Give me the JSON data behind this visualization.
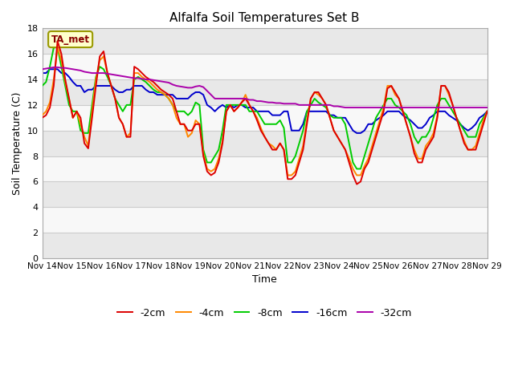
{
  "title": "Alfalfa Soil Temperatures Set B",
  "xlabel": "Time",
  "ylabel": "Soil Temperature (C)",
  "ylim": [
    0,
    18
  ],
  "yticks": [
    0,
    2,
    4,
    6,
    8,
    10,
    12,
    14,
    16,
    18
  ],
  "x_labels": [
    "Nov 14",
    "Nov 15",
    "Nov 16",
    "Nov 17",
    "Nov 18",
    "Nov 19",
    "Nov 20",
    "Nov 21",
    "Nov 22",
    "Nov 23",
    "Nov 24",
    "Nov 25",
    "Nov 26",
    "Nov 27",
    "Nov 28",
    "Nov 29"
  ],
  "annotation": "TA_met",
  "colors": {
    "-2cm": "#dd0000",
    "-4cm": "#ff8800",
    "-8cm": "#00cc00",
    "-16cm": "#0000cc",
    "-32cm": "#aa00aa"
  },
  "line_width": 1.4,
  "legend_labels": [
    "-2cm",
    "-4cm",
    "-8cm",
    "-16cm",
    "-32cm"
  ],
  "band_light": "#f0f0f0",
  "band_dark": "#e0e0e0",
  "grid_color": "#ffffff",
  "t2cm": [
    11.0,
    11.2,
    11.8,
    13.5,
    17.0,
    16.0,
    14.0,
    12.5,
    11.0,
    11.5,
    11.0,
    9.0,
    8.6,
    11.0,
    13.5,
    15.8,
    16.2,
    14.5,
    13.5,
    12.5,
    11.0,
    10.5,
    9.5,
    9.5,
    15.0,
    14.8,
    14.5,
    14.2,
    14.0,
    13.8,
    13.5,
    13.2,
    13.0,
    12.8,
    12.5,
    11.5,
    10.5,
    10.5,
    10.0,
    10.0,
    10.5,
    10.5,
    8.0,
    6.8,
    6.5,
    6.7,
    7.5,
    9.0,
    11.5,
    12.0,
    11.5,
    11.8,
    12.2,
    12.5,
    12.0,
    11.5,
    10.8,
    10.0,
    9.5,
    9.0,
    8.5,
    8.5,
    9.0,
    8.5,
    6.2,
    6.2,
    6.5,
    7.5,
    8.5,
    10.5,
    12.5,
    13.0,
    13.0,
    12.5,
    12.0,
    11.0,
    10.0,
    9.5,
    9.0,
    8.5,
    7.5,
    6.5,
    5.8,
    6.0,
    7.0,
    7.5,
    8.5,
    9.5,
    10.5,
    11.5,
    13.3,
    13.5,
    13.0,
    12.5,
    11.5,
    10.5,
    9.5,
    8.2,
    7.5,
    7.5,
    8.5,
    9.0,
    9.5,
    11.0,
    13.5,
    13.5,
    13.0,
    12.0,
    11.0,
    10.0,
    9.0,
    8.5,
    8.5,
    8.5,
    9.5,
    10.5,
    11.5
  ],
  "t4cm": [
    11.2,
    11.5,
    12.2,
    14.0,
    16.5,
    15.5,
    13.8,
    12.5,
    11.0,
    11.5,
    10.5,
    9.5,
    8.8,
    11.5,
    14.0,
    15.5,
    15.8,
    14.5,
    13.5,
    12.5,
    11.0,
    10.5,
    9.5,
    9.8,
    14.5,
    14.5,
    14.2,
    14.0,
    13.8,
    13.5,
    13.2,
    13.0,
    12.8,
    12.5,
    12.0,
    11.0,
    10.5,
    10.5,
    9.5,
    9.8,
    10.8,
    10.5,
    8.2,
    7.0,
    6.8,
    7.0,
    7.8,
    9.2,
    11.5,
    12.0,
    11.5,
    11.8,
    12.2,
    12.8,
    12.0,
    11.5,
    11.0,
    10.2,
    9.5,
    9.0,
    8.8,
    8.5,
    9.0,
    8.5,
    6.5,
    6.5,
    6.8,
    7.8,
    8.8,
    10.8,
    12.5,
    13.0,
    12.8,
    12.5,
    12.0,
    11.0,
    10.0,
    9.5,
    9.0,
    8.5,
    7.8,
    7.0,
    6.5,
    6.5,
    7.2,
    7.8,
    8.8,
    9.8,
    10.8,
    11.8,
    13.5,
    13.5,
    12.8,
    12.5,
    11.5,
    10.5,
    9.5,
    8.5,
    7.8,
    7.8,
    8.8,
    9.2,
    9.8,
    11.2,
    13.5,
    13.5,
    12.8,
    12.0,
    11.0,
    10.0,
    9.2,
    8.5,
    8.5,
    8.8,
    9.8,
    10.8,
    11.5
  ],
  "t8cm": [
    13.5,
    13.8,
    15.0,
    16.5,
    16.5,
    15.0,
    13.5,
    12.0,
    11.5,
    11.5,
    10.0,
    9.8,
    9.8,
    12.0,
    14.2,
    15.0,
    14.8,
    14.2,
    13.5,
    12.5,
    12.0,
    11.5,
    12.0,
    12.0,
    14.0,
    14.2,
    14.0,
    13.8,
    13.5,
    13.2,
    13.0,
    13.0,
    12.8,
    12.5,
    12.0,
    11.5,
    11.5,
    11.5,
    11.2,
    11.5,
    12.2,
    12.0,
    8.5,
    7.5,
    7.5,
    8.0,
    8.5,
    10.0,
    12.0,
    12.0,
    12.0,
    12.0,
    12.0,
    12.0,
    11.5,
    11.5,
    11.5,
    11.0,
    10.5,
    10.5,
    10.5,
    10.5,
    10.8,
    10.2,
    7.5,
    7.5,
    8.0,
    9.0,
    10.0,
    11.5,
    12.0,
    12.5,
    12.2,
    12.0,
    11.8,
    11.2,
    11.0,
    11.0,
    11.0,
    10.5,
    9.0,
    7.5,
    7.0,
    7.0,
    8.0,
    9.0,
    10.0,
    11.0,
    11.5,
    12.0,
    12.5,
    12.5,
    12.0,
    11.8,
    11.5,
    11.2,
    10.5,
    9.5,
    9.0,
    9.5,
    9.5,
    10.0,
    11.0,
    12.0,
    12.5,
    12.5,
    12.0,
    11.5,
    11.0,
    10.5,
    10.0,
    9.5,
    9.5,
    9.5,
    10.5,
    11.0,
    11.5
  ],
  "t16cm": [
    14.5,
    14.5,
    14.8,
    14.8,
    14.8,
    14.5,
    14.5,
    14.2,
    13.8,
    13.5,
    13.5,
    13.0,
    13.2,
    13.2,
    13.5,
    13.5,
    13.5,
    13.5,
    13.5,
    13.2,
    13.0,
    13.0,
    13.2,
    13.2,
    13.5,
    13.5,
    13.5,
    13.2,
    13.0,
    13.0,
    12.8,
    12.8,
    12.8,
    12.8,
    12.8,
    12.5,
    12.5,
    12.5,
    12.5,
    12.8,
    13.0,
    13.0,
    12.8,
    12.0,
    11.8,
    11.5,
    11.8,
    12.0,
    11.8,
    12.0,
    11.8,
    12.0,
    12.0,
    11.8,
    11.8,
    11.8,
    11.5,
    11.5,
    11.5,
    11.5,
    11.2,
    11.2,
    11.2,
    11.5,
    11.5,
    10.0,
    10.0,
    10.0,
    10.5,
    11.5,
    11.5,
    11.5,
    11.5,
    11.5,
    11.5,
    11.2,
    11.2,
    11.0,
    11.0,
    11.0,
    10.5,
    10.0,
    9.8,
    9.8,
    10.0,
    10.5,
    10.5,
    10.8,
    11.0,
    11.2,
    11.5,
    11.5,
    11.5,
    11.5,
    11.2,
    11.0,
    10.8,
    10.5,
    10.2,
    10.2,
    10.5,
    11.0,
    11.2,
    11.5,
    11.5,
    11.5,
    11.2,
    11.0,
    10.8,
    10.5,
    10.2,
    10.0,
    10.2,
    10.5,
    11.0,
    11.2,
    11.5
  ],
  "t32cm": [
    14.8,
    14.85,
    14.9,
    14.95,
    14.95,
    14.9,
    14.9,
    14.85,
    14.8,
    14.75,
    14.7,
    14.6,
    14.55,
    14.5,
    14.5,
    14.5,
    14.5,
    14.45,
    14.4,
    14.35,
    14.3,
    14.25,
    14.2,
    14.15,
    14.1,
    14.1,
    14.05,
    14.0,
    14.0,
    13.95,
    13.9,
    13.85,
    13.8,
    13.75,
    13.6,
    13.5,
    13.45,
    13.4,
    13.35,
    13.35,
    13.45,
    13.5,
    13.4,
    13.1,
    12.8,
    12.5,
    12.5,
    12.5,
    12.5,
    12.5,
    12.5,
    12.5,
    12.5,
    12.5,
    12.4,
    12.4,
    12.3,
    12.3,
    12.25,
    12.2,
    12.2,
    12.15,
    12.15,
    12.1,
    12.1,
    12.1,
    12.1,
    12.0,
    12.0,
    12.0,
    12.0,
    12.0,
    12.0,
    12.0,
    12.0,
    12.0,
    11.9,
    11.9,
    11.85,
    11.8,
    11.8,
    11.8,
    11.8,
    11.8,
    11.8,
    11.8,
    11.8,
    11.8,
    11.8,
    11.8,
    11.8,
    11.8,
    11.8,
    11.8,
    11.8,
    11.8,
    11.8,
    11.8,
    11.8,
    11.8,
    11.8,
    11.8,
    11.8,
    11.8,
    11.8,
    11.8,
    11.8,
    11.8,
    11.8,
    11.8,
    11.8,
    11.8,
    11.8,
    11.8,
    11.8,
    11.8,
    11.8
  ]
}
